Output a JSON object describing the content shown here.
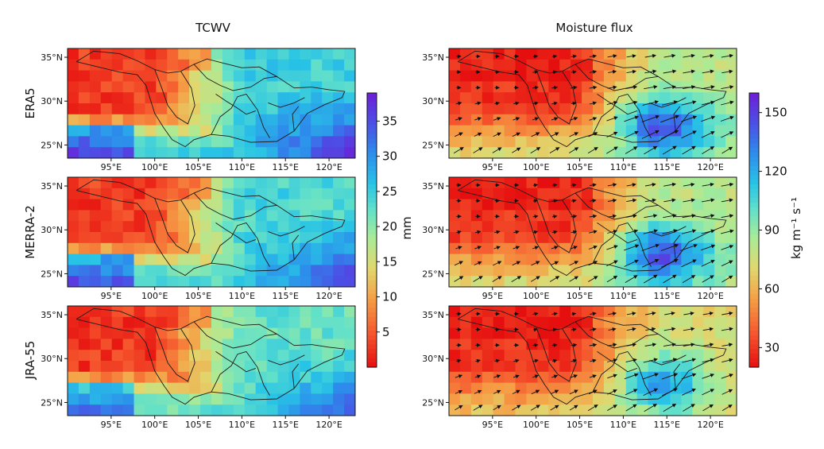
{
  "chart_data": {
    "type": "heatmap",
    "column_titles": [
      "TCWV",
      "Moisture flux"
    ],
    "row_labels": [
      "ERA5",
      "MERRA-2",
      "JRA-55"
    ],
    "x_ticks": [
      "95°E",
      "100°E",
      "105°E",
      "110°E",
      "115°E",
      "120°E"
    ],
    "y_ticks": [
      "35°N",
      "30°N",
      "25°N"
    ],
    "x_range": [
      90,
      123
    ],
    "y_range": [
      23.5,
      36
    ],
    "colorbars": [
      {
        "label": "mm",
        "ticks": [
          "5",
          "10",
          "15",
          "20",
          "25",
          "30",
          "35"
        ],
        "tick_values": [
          5,
          10,
          15,
          20,
          25,
          30,
          35
        ],
        "range": [
          0,
          39
        ]
      },
      {
        "label": "kg m⁻¹ s⁻¹",
        "ticks": [
          "30",
          "60",
          "90",
          "120",
          "150"
        ],
        "tick_values": [
          30,
          60,
          90,
          120,
          150
        ],
        "range": [
          20,
          160
        ]
      }
    ],
    "colormap": "rainbow (red → orange → yellow-green → cyan → blue → purple)",
    "vectors": "moisture flux arrows, predominantly westerly / south-westerly east of 100°E"
  }
}
